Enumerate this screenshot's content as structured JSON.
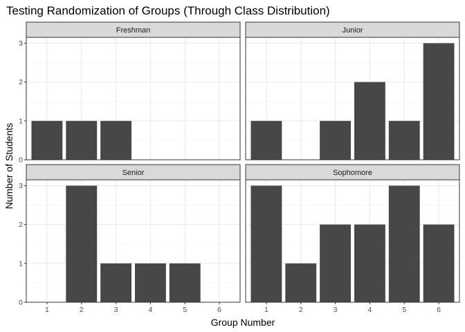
{
  "chart_data": {
    "type": "bar",
    "title": "Testing Randomization of Groups (Through Class Distribution)",
    "xlabel": "Group Number",
    "ylabel": "Number of Students",
    "categories": [
      "1",
      "2",
      "3",
      "4",
      "5",
      "6"
    ],
    "y_ticks": [
      "0",
      "1",
      "2",
      "3"
    ],
    "ylim": [
      0,
      3.15
    ],
    "grid": true,
    "legend": "none",
    "bar_color": "#474747",
    "panels": [
      {
        "name": "Freshman",
        "values": [
          1,
          1,
          1,
          0,
          0,
          0
        ]
      },
      {
        "name": "Junior",
        "values": [
          1,
          0,
          1,
          2,
          1,
          3
        ]
      },
      {
        "name": "Senior",
        "values": [
          0,
          3,
          1,
          1,
          1,
          0
        ]
      },
      {
        "name": "Sophomore",
        "values": [
          3,
          1,
          2,
          2,
          3,
          2
        ]
      }
    ]
  }
}
